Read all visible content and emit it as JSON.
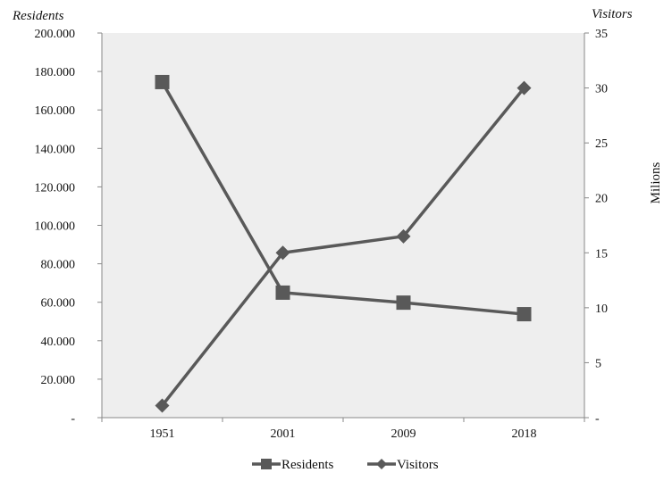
{
  "chart_data": {
    "type": "line",
    "categories": [
      "1951",
      "2001",
      "2009",
      "2018"
    ],
    "y_left": {
      "title": "Residents",
      "range": [
        0,
        200000
      ],
      "ticks": [
        0,
        20000,
        40000,
        60000,
        80000,
        100000,
        120000,
        140000,
        160000,
        180000,
        200000
      ],
      "tick_labels": [
        "-",
        "20.000",
        "40.000",
        "60.000",
        "80.000",
        "100.000",
        "120.000",
        "140.000",
        "160.000",
        "180.000",
        "200.000"
      ]
    },
    "y_right": {
      "title": "Visitors",
      "label": "Milions",
      "range": [
        0,
        35
      ],
      "ticks": [
        0,
        5,
        10,
        15,
        20,
        25,
        30,
        35
      ],
      "tick_labels": [
        "-",
        "5",
        "10",
        "15",
        "20",
        "25",
        "30",
        "35"
      ]
    },
    "series": [
      {
        "name": "Residents",
        "axis": "left",
        "marker": "square",
        "color": "#595959",
        "values": [
          174500,
          65000,
          59800,
          53800
        ]
      },
      {
        "name": "Visitors",
        "axis": "right",
        "marker": "diamond",
        "color": "#595959",
        "values": [
          1.1,
          15.0,
          16.5,
          30.0
        ]
      }
    ],
    "grid": false,
    "plot_background": "#eeeeee",
    "legend_position": "bottom"
  }
}
